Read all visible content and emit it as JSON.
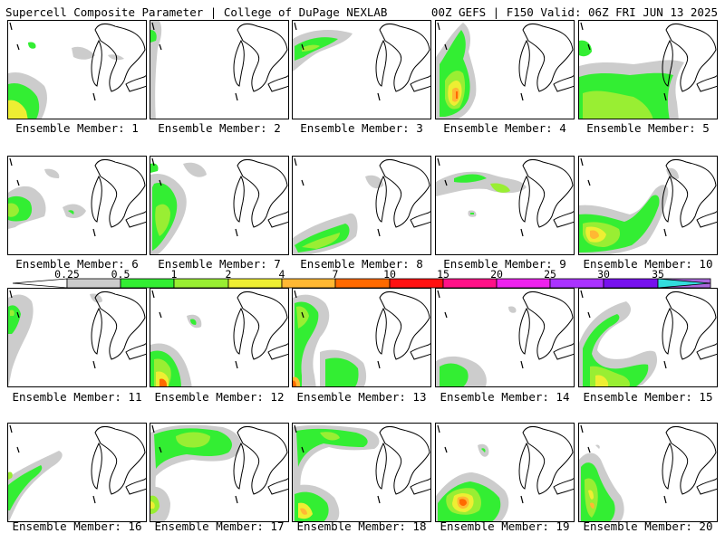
{
  "header": {
    "title_left": "Supercell Composite Parameter | College of DuPage NEXLAB",
    "title_right": "00Z GEFS | F150 Valid: 06Z FRI JUN 13 2025"
  },
  "colors": {
    "bins": [
      "#ffffff",
      "#cccccc",
      "#33ee33",
      "#99ee33",
      "#eeee33",
      "#ffb833",
      "#ff6a00",
      "#ff1111",
      "#ff1188",
      "#ee22ee",
      "#aa33ff",
      "#7711ee",
      "#aa66dd",
      "#33dddd"
    ],
    "outline": "#000000"
  },
  "colorbar": {
    "labels": [
      "0.25",
      "0.5",
      "1",
      "2",
      "4",
      "7",
      "10",
      "15",
      "20",
      "25",
      "30",
      "35"
    ],
    "segment_colors": [
      "#ffffff",
      "#cccccc",
      "#33ee33",
      "#99ee33",
      "#eeee33",
      "#ffb833",
      "#ff6a00",
      "#ff1111",
      "#ff1188",
      "#ee22ee",
      "#aa33ff",
      "#7711ee",
      "#aa66dd",
      "#33dddd"
    ]
  },
  "panels": [
    {
      "member": "Ensemble Member: 1"
    },
    {
      "member": "Ensemble Member: 2"
    },
    {
      "member": "Ensemble Member: 3"
    },
    {
      "member": "Ensemble Member: 4"
    },
    {
      "member": "Ensemble Member: 5"
    },
    {
      "member": "Ensemble Member: 6"
    },
    {
      "member": "Ensemble Member: 7"
    },
    {
      "member": "Ensemble Member: 8"
    },
    {
      "member": "Ensemble Member: 9"
    },
    {
      "member": "Ensemble Member: 10"
    },
    {
      "member": "Ensemble Member: 11"
    },
    {
      "member": "Ensemble Member: 12"
    },
    {
      "member": "Ensemble Member: 13"
    },
    {
      "member": "Ensemble Member: 14"
    },
    {
      "member": "Ensemble Member: 15"
    },
    {
      "member": "Ensemble Member: 16"
    },
    {
      "member": "Ensemble Member: 17"
    },
    {
      "member": "Ensemble Member: 18"
    },
    {
      "member": "Ensemble Member: 19"
    },
    {
      "member": "Ensemble Member: 20"
    }
  ]
}
